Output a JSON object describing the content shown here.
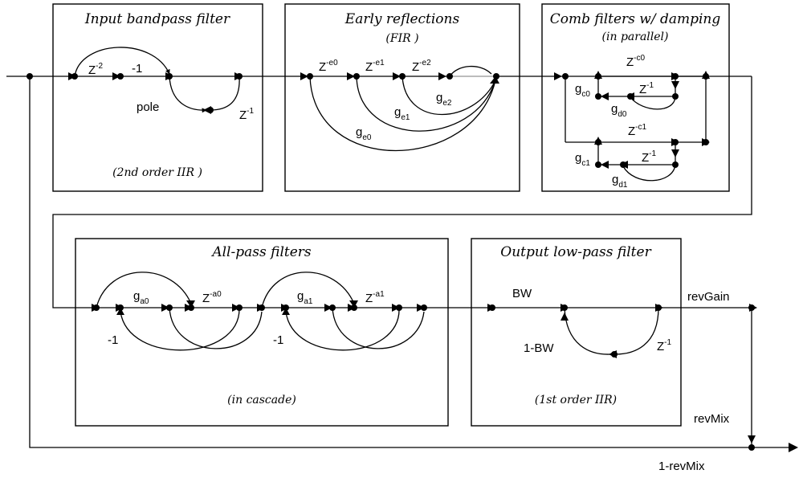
{
  "blocks": {
    "bandpass": {
      "title": "Input bandpass filter",
      "note": "(2nd order IIR )"
    },
    "early": {
      "title": "Early reflections",
      "subtitle": "(FIR )"
    },
    "comb": {
      "title": "Comb filters w/ damping",
      "subtitle": "(in parallel)"
    },
    "allpass": {
      "title": "All-pass filters",
      "note": "(in cascade)"
    },
    "lowpass": {
      "title": "Output low-pass filter",
      "note": "(1st order IIR)"
    }
  },
  "labels": {
    "z_minus2": {
      "base": "Z",
      "sup": "-2"
    },
    "minus1_bp": "-1",
    "pole": "pole",
    "z_minus1_bp": {
      "base": "Z",
      "sup": "-1"
    },
    "z_e0": {
      "base": "Z",
      "sup": "-e0"
    },
    "z_e1": {
      "base": "Z",
      "sup": "-e1"
    },
    "z_e2": {
      "base": "Z",
      "sup": "-e2"
    },
    "g_e0": {
      "base": "g",
      "sub": "e0"
    },
    "g_e1": {
      "base": "g",
      "sub": "e1"
    },
    "g_e2": {
      "base": "g",
      "sub": "e2"
    },
    "z_c0": {
      "base": "Z",
      "sup": "-c0"
    },
    "z_c1": {
      "base": "Z",
      "sup": "-c1"
    },
    "g_c0": {
      "base": "g",
      "sub": "c0"
    },
    "g_c1": {
      "base": "g",
      "sub": "c1"
    },
    "g_d0": {
      "base": "g",
      "sub": "d0"
    },
    "g_d1": {
      "base": "g",
      "sub": "d1"
    },
    "z_m1_c0": {
      "base": "Z",
      "sup": "-1"
    },
    "z_m1_c1": {
      "base": "Z",
      "sup": "-1"
    },
    "g_a0": {
      "base": "g",
      "sub": "a0"
    },
    "g_a1": {
      "base": "g",
      "sub": "a1"
    },
    "z_a0": {
      "base": "Z",
      "sup": "-a0"
    },
    "z_a1": {
      "base": "Z",
      "sup": "-a1"
    },
    "minus1_ap0": "-1",
    "minus1_ap1": "-1",
    "bw": "BW",
    "one_minus_bw": "1-BW",
    "z_minus1_lp": {
      "base": "Z",
      "sup": "-1"
    },
    "rev_gain": "revGain",
    "rev_mix": "revMix",
    "one_minus_rev_mix": "1-revMix"
  }
}
